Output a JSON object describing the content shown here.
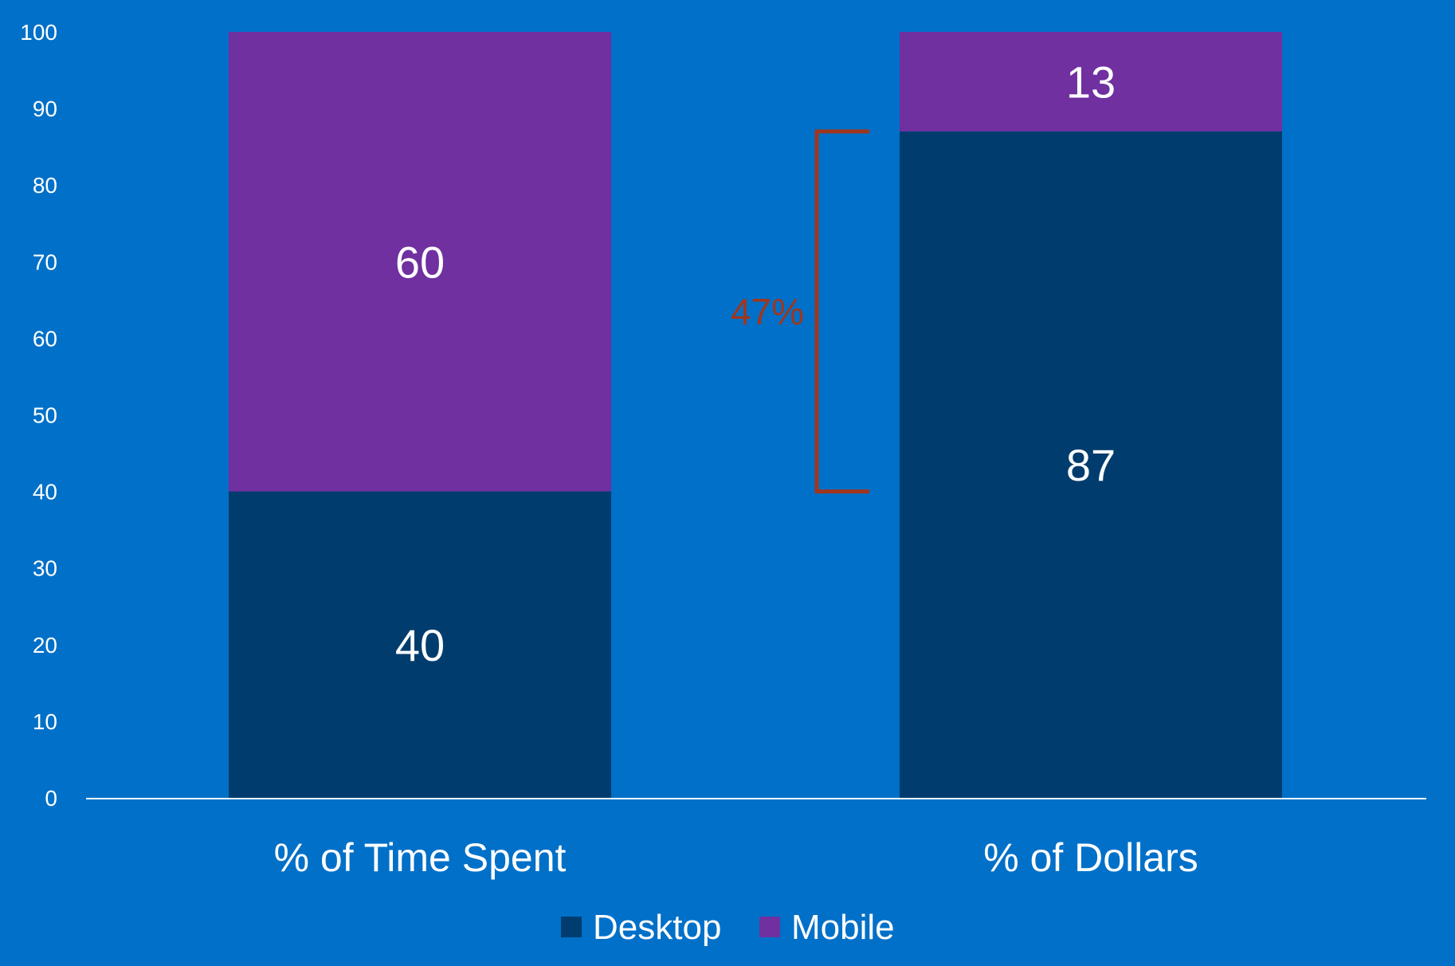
{
  "chart_data": {
    "type": "bar",
    "stacked": true,
    "title": "",
    "xlabel": "",
    "ylabel": "",
    "ylim": [
      0,
      100
    ],
    "yticks": [
      "0",
      "10",
      "20",
      "30",
      "40",
      "50",
      "60",
      "70",
      "80",
      "90",
      "100"
    ],
    "categories": [
      "% of Time Spent",
      "% of Dollars"
    ],
    "series": [
      {
        "name": "Desktop",
        "values": [
          40,
          87
        ],
        "color": "#003d6e"
      },
      {
        "name": "Mobile",
        "values": [
          60,
          13
        ],
        "color": "#7030a0"
      }
    ],
    "legend": {
      "position": "bottom",
      "entries": [
        "Desktop",
        "Mobile"
      ]
    },
    "annotation": {
      "text": "47%",
      "color": "#a1361c",
      "from_value": 40,
      "to_value": 87
    },
    "background_color": "#0070c8"
  }
}
